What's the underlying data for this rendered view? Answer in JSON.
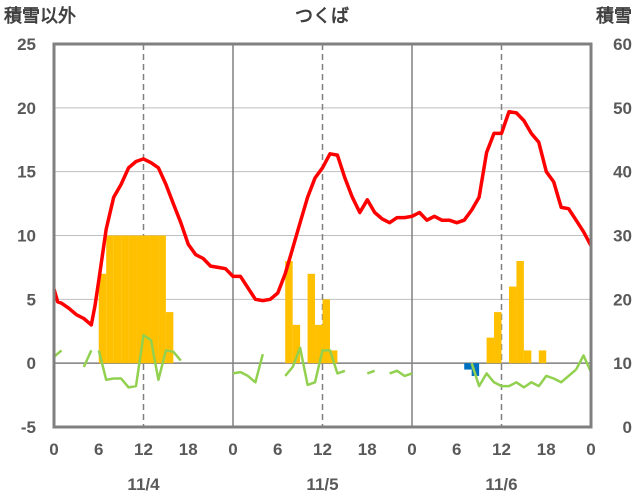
{
  "chart_data": {
    "type": "line",
    "title": "つくば",
    "left_axis_label": "積雪以外",
    "right_axis_label": "積雪",
    "left_ylim": [
      -5,
      25
    ],
    "left_ticks": [
      -5,
      0,
      5,
      10,
      15,
      20,
      25
    ],
    "right_ylim": [
      0,
      60
    ],
    "right_ticks": [
      0,
      10,
      20,
      30,
      40,
      50,
      60
    ],
    "xlim": [
      0,
      72
    ],
    "x_tick_labels": [
      "0",
      "6",
      "12",
      "18",
      "0",
      "6",
      "12",
      "18",
      "0",
      "6",
      "12",
      "18",
      "0"
    ],
    "day_labels": [
      "11/4",
      "11/5",
      "11/6"
    ],
    "grid": {
      "day_separators": true,
      "noon_dashed": true,
      "horizontal_solid": true
    },
    "colors": {
      "temperature": "#ff0000",
      "bar": "#ffc000",
      "green": "#92d050",
      "blue": "#0070c0",
      "axis": "#808080"
    },
    "temperature": [
      [
        0,
        5.8
      ],
      [
        0.5,
        4.8
      ],
      [
        1,
        4.7
      ],
      [
        2,
        4.3
      ],
      [
        3,
        3.8
      ],
      [
        4,
        3.5
      ],
      [
        5,
        3.0
      ],
      [
        5.5,
        4.5
      ],
      [
        6,
        6.5
      ],
      [
        7,
        10.5
      ],
      [
        8,
        13.0
      ],
      [
        9,
        14.0
      ],
      [
        10,
        15.3
      ],
      [
        11,
        15.8
      ],
      [
        12,
        16.0
      ],
      [
        13,
        15.7
      ],
      [
        14,
        15.3
      ],
      [
        15,
        14.0
      ],
      [
        16,
        12.5
      ],
      [
        17,
        11.0
      ],
      [
        18,
        9.3
      ],
      [
        19,
        8.5
      ],
      [
        20,
        8.2
      ],
      [
        21,
        7.6
      ],
      [
        22,
        7.5
      ],
      [
        23,
        7.4
      ],
      [
        24,
        6.8
      ],
      [
        25,
        6.8
      ],
      [
        26,
        5.9
      ],
      [
        27,
        5.0
      ],
      [
        28,
        4.9
      ],
      [
        29,
        5.0
      ],
      [
        30,
        5.5
      ],
      [
        31,
        7.0
      ],
      [
        32,
        9.0
      ],
      [
        33,
        11.0
      ],
      [
        34,
        13.0
      ],
      [
        35,
        14.5
      ],
      [
        36,
        15.3
      ],
      [
        37,
        16.4
      ],
      [
        38,
        16.3
      ],
      [
        39,
        14.5
      ],
      [
        40,
        13.0
      ],
      [
        41,
        11.8
      ],
      [
        42,
        12.8
      ],
      [
        43,
        11.8
      ],
      [
        44,
        11.3
      ],
      [
        45,
        11.0
      ],
      [
        46,
        11.4
      ],
      [
        47,
        11.4
      ],
      [
        48,
        11.5
      ],
      [
        49,
        11.8
      ],
      [
        50,
        11.2
      ],
      [
        51,
        11.5
      ],
      [
        52,
        11.2
      ],
      [
        53,
        11.2
      ],
      [
        54,
        11.0
      ],
      [
        55,
        11.2
      ],
      [
        56,
        12.0
      ],
      [
        57,
        13.0
      ],
      [
        58,
        16.5
      ],
      [
        59,
        18.0
      ],
      [
        60,
        18.0
      ],
      [
        61,
        19.7
      ],
      [
        62,
        19.6
      ],
      [
        63,
        19.0
      ],
      [
        64,
        18.0
      ],
      [
        65,
        17.3
      ],
      [
        66,
        15.0
      ],
      [
        67,
        14.2
      ],
      [
        68,
        12.2
      ],
      [
        69,
        12.1
      ],
      [
        70,
        11.2
      ],
      [
        71,
        10.3
      ],
      [
        72,
        9.2
      ]
    ],
    "bars": [
      [
        6,
        7
      ],
      [
        7,
        10
      ],
      [
        8,
        10
      ],
      [
        9,
        10
      ],
      [
        10,
        10
      ],
      [
        11,
        10
      ],
      [
        12,
        10
      ],
      [
        13,
        10
      ],
      [
        14,
        10
      ],
      [
        15,
        4
      ],
      [
        31,
        8
      ],
      [
        32,
        3
      ],
      [
        34,
        7
      ],
      [
        35,
        3
      ],
      [
        36,
        5
      ],
      [
        37,
        1
      ],
      [
        58,
        2
      ],
      [
        59,
        4
      ],
      [
        61,
        6
      ],
      [
        62,
        8
      ],
      [
        63,
        1
      ],
      [
        65,
        1
      ]
    ],
    "blue_bars": [
      [
        55,
        -0.5
      ],
      [
        56,
        -1.0
      ]
    ],
    "green_segments": [
      [
        [
          0,
          0.5
        ],
        [
          1,
          1.0
        ]
      ],
      [
        [
          4,
          -0.3
        ],
        [
          5,
          1.0
        ]
      ],
      [
        [
          6,
          1.0
        ],
        [
          7,
          -1.3
        ],
        [
          8,
          -1.2
        ],
        [
          9,
          -1.2
        ],
        [
          10,
          -1.9
        ],
        [
          11,
          -1.8
        ],
        [
          12,
          2.2
        ],
        [
          13,
          1.8
        ],
        [
          14,
          -1.3
        ],
        [
          15,
          1.0
        ],
        [
          16,
          0.9
        ],
        [
          17,
          0.2
        ]
      ],
      [
        [
          24,
          -0.8
        ],
        [
          25,
          -0.7
        ],
        [
          26,
          -1.0
        ],
        [
          27,
          -1.5
        ],
        [
          28,
          0.7
        ]
      ],
      [
        [
          31,
          -1.0
        ],
        [
          32,
          -0.3
        ],
        [
          33,
          1.2
        ],
        [
          34,
          -1.7
        ],
        [
          35,
          -1.5
        ],
        [
          36,
          1.0
        ],
        [
          37,
          1.0
        ],
        [
          38,
          -0.8
        ],
        [
          39,
          -0.6
        ]
      ],
      [
        [
          42,
          -0.8
        ],
        [
          43,
          -0.6
        ]
      ],
      [
        [
          45,
          -0.8
        ],
        [
          46,
          -0.6
        ],
        [
          47,
          -1.0
        ],
        [
          48,
          -0.8
        ]
      ],
      [
        [
          56,
          0
        ],
        [
          57,
          -1.8
        ],
        [
          58,
          -0.8
        ],
        [
          59,
          -1.5
        ],
        [
          60,
          -1.8
        ],
        [
          61,
          -1.8
        ],
        [
          62,
          -1.5
        ],
        [
          63,
          -1.9
        ],
        [
          64,
          -1.5
        ],
        [
          65,
          -1.8
        ],
        [
          66,
          -1.0
        ],
        [
          67,
          -1.2
        ],
        [
          68,
          -1.5
        ],
        [
          69,
          -1.0
        ],
        [
          70,
          -0.5
        ]
      ],
      [
        [
          70,
          -0.5
        ],
        [
          71,
          0.6
        ],
        [
          72,
          -0.7
        ]
      ]
    ]
  }
}
